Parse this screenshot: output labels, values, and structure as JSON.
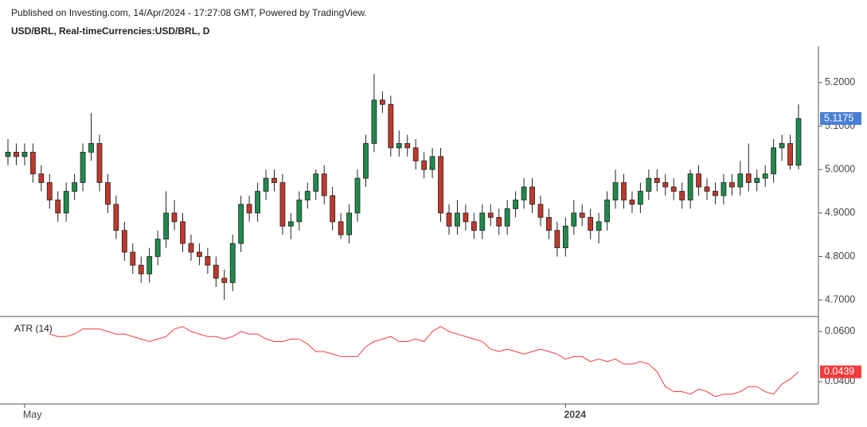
{
  "chart_data": {
    "type": "candlestick",
    "note": "Published on Investing.com, 14/Apr/2024 - 17:27:08 GMT, Powered by TradingView.",
    "title": "USD/BRL, Real-timeCurrencies:USD/BRL, D",
    "categories": [
      null,
      null,
      "May",
      null,
      null,
      null,
      null,
      null,
      null,
      null,
      null,
      null,
      null,
      null,
      null,
      null,
      null,
      null,
      null,
      null,
      null,
      null,
      null,
      null,
      null,
      null,
      null,
      null,
      null,
      null,
      null,
      null,
      null,
      null,
      null,
      null,
      null,
      null,
      null,
      null,
      null,
      null,
      null,
      null,
      null,
      null,
      null,
      null,
      null,
      null,
      null,
      null,
      null,
      null,
      null,
      null,
      null,
      null,
      null,
      null,
      null,
      null,
      null,
      null,
      null,
      null,
      null,
      "2024",
      null,
      null,
      null,
      null,
      null,
      null,
      null,
      null,
      null,
      null,
      null,
      null,
      null,
      null,
      null,
      null,
      null,
      null,
      null,
      null,
      null,
      null,
      null,
      null,
      null,
      null,
      null,
      null
    ],
    "candles": [
      [
        5.03,
        5.07,
        5.01,
        5.04
      ],
      [
        5.04,
        5.06,
        5.01,
        5.03
      ],
      [
        5.03,
        5.06,
        5.01,
        5.04
      ],
      [
        5.04,
        5.06,
        4.97,
        4.99
      ],
      [
        4.99,
        5.01,
        4.95,
        4.97
      ],
      [
        4.97,
        4.99,
        4.91,
        4.93
      ],
      [
        4.93,
        4.95,
        4.88,
        4.9
      ],
      [
        4.9,
        4.97,
        4.88,
        4.95
      ],
      [
        4.95,
        4.99,
        4.93,
        4.97
      ],
      [
        4.97,
        5.06,
        4.95,
        5.04
      ],
      [
        5.04,
        5.13,
        5.02,
        5.06
      ],
      [
        5.06,
        5.08,
        4.95,
        4.97
      ],
      [
        4.97,
        4.99,
        4.9,
        4.92
      ],
      [
        4.92,
        4.94,
        4.84,
        4.86
      ],
      [
        4.86,
        4.88,
        4.79,
        4.81
      ],
      [
        4.81,
        4.83,
        4.76,
        4.78
      ],
      [
        4.78,
        4.8,
        4.74,
        4.76
      ],
      [
        4.76,
        4.82,
        4.74,
        4.8
      ],
      [
        4.8,
        4.86,
        4.78,
        4.84
      ],
      [
        4.84,
        4.95,
        4.82,
        4.9
      ],
      [
        4.9,
        4.93,
        4.86,
        4.88
      ],
      [
        4.88,
        4.9,
        4.81,
        4.83
      ],
      [
        4.83,
        4.85,
        4.79,
        4.81
      ],
      [
        4.81,
        4.83,
        4.78,
        4.8
      ],
      [
        4.8,
        4.82,
        4.76,
        4.78
      ],
      [
        4.78,
        4.8,
        4.73,
        4.75
      ],
      [
        4.75,
        4.77,
        4.7,
        4.74
      ],
      [
        4.74,
        4.85,
        4.72,
        4.83
      ],
      [
        4.83,
        4.94,
        4.81,
        4.92
      ],
      [
        4.92,
        4.94,
        4.88,
        4.9
      ],
      [
        4.9,
        4.97,
        4.88,
        4.95
      ],
      [
        4.95,
        5.0,
        4.93,
        4.98
      ],
      [
        4.98,
        5.0,
        4.95,
        4.97
      ],
      [
        4.97,
        4.99,
        4.85,
        4.87
      ],
      [
        4.87,
        4.9,
        4.84,
        4.88
      ],
      [
        4.88,
        4.95,
        4.86,
        4.93
      ],
      [
        4.93,
        4.97,
        4.91,
        4.95
      ],
      [
        4.95,
        5.0,
        4.93,
        4.99
      ],
      [
        4.99,
        5.01,
        4.92,
        4.94
      ],
      [
        4.94,
        4.96,
        4.86,
        4.88
      ],
      [
        4.88,
        4.9,
        4.84,
        4.85
      ],
      [
        4.85,
        4.92,
        4.83,
        4.9
      ],
      [
        4.9,
        5.0,
        4.88,
        4.98
      ],
      [
        4.98,
        5.08,
        4.96,
        5.06
      ],
      [
        5.06,
        5.22,
        5.04,
        5.16
      ],
      [
        5.16,
        5.18,
        5.13,
        5.15
      ],
      [
        5.15,
        5.17,
        5.03,
        5.05
      ],
      [
        5.05,
        5.09,
        5.03,
        5.06
      ],
      [
        5.06,
        5.08,
        5.03,
        5.05
      ],
      [
        5.05,
        5.07,
        5.0,
        5.02
      ],
      [
        5.02,
        5.04,
        4.98,
        5.0
      ],
      [
        5.0,
        5.05,
        4.98,
        5.03
      ],
      [
        5.03,
        5.05,
        4.88,
        4.9
      ],
      [
        4.9,
        4.92,
        4.85,
        4.87
      ],
      [
        4.87,
        4.93,
        4.85,
        4.9
      ],
      [
        4.9,
        4.92,
        4.86,
        4.88
      ],
      [
        4.88,
        4.9,
        4.84,
        4.86
      ],
      [
        4.86,
        4.92,
        4.84,
        4.9
      ],
      [
        4.9,
        4.92,
        4.87,
        4.89
      ],
      [
        4.89,
        4.91,
        4.85,
        4.87
      ],
      [
        4.87,
        4.93,
        4.85,
        4.91
      ],
      [
        4.91,
        4.95,
        4.89,
        4.93
      ],
      [
        4.93,
        4.98,
        4.91,
        4.96
      ],
      [
        4.96,
        4.98,
        4.9,
        4.92
      ],
      [
        4.92,
        4.94,
        4.87,
        4.89
      ],
      [
        4.89,
        4.91,
        4.84,
        4.86
      ],
      [
        4.86,
        4.88,
        4.8,
        4.82
      ],
      [
        4.82,
        4.89,
        4.8,
        4.87
      ],
      [
        4.87,
        4.93,
        4.85,
        4.9
      ],
      [
        4.9,
        4.92,
        4.87,
        4.89
      ],
      [
        4.89,
        4.91,
        4.84,
        4.86
      ],
      [
        4.86,
        4.9,
        4.83,
        4.88
      ],
      [
        4.88,
        4.95,
        4.86,
        4.93
      ],
      [
        4.93,
        5.0,
        4.91,
        4.97
      ],
      [
        4.97,
        4.99,
        4.91,
        4.93
      ],
      [
        4.93,
        4.95,
        4.9,
        4.92
      ],
      [
        4.92,
        4.97,
        4.9,
        4.95
      ],
      [
        4.95,
        5.0,
        4.93,
        4.98
      ],
      [
        4.98,
        5.0,
        4.95,
        4.97
      ],
      [
        4.97,
        4.99,
        4.94,
        4.96
      ],
      [
        4.96,
        4.98,
        4.93,
        4.95
      ],
      [
        4.95,
        4.97,
        4.91,
        4.93
      ],
      [
        4.93,
        5.0,
        4.91,
        4.99
      ],
      [
        4.99,
        5.01,
        4.94,
        4.96
      ],
      [
        4.96,
        4.98,
        4.93,
        4.95
      ],
      [
        4.95,
        4.97,
        4.92,
        4.94
      ],
      [
        4.94,
        4.99,
        4.92,
        4.97
      ],
      [
        4.97,
        4.99,
        4.94,
        4.96
      ],
      [
        4.96,
        5.02,
        4.94,
        4.99
      ],
      [
        4.99,
        5.06,
        4.95,
        4.97
      ],
      [
        4.97,
        5.0,
        4.95,
        4.98
      ],
      [
        4.98,
        5.01,
        4.96,
        4.99
      ],
      [
        4.99,
        5.07,
        4.97,
        5.05
      ],
      [
        5.05,
        5.08,
        5.02,
        5.06
      ],
      [
        5.06,
        5.08,
        5.0,
        5.01
      ],
      [
        5.01,
        5.15,
        5.0,
        5.1175
      ]
    ],
    "up_color": "#1f8a4c",
    "down_color": "#c0392b",
    "ylim": [
      4.662,
      5.284
    ],
    "yticks": [
      {
        "value": 4.7,
        "label": "4.7000"
      },
      {
        "value": 4.8,
        "label": "4.8000"
      },
      {
        "value": 4.9,
        "label": "4.9000"
      },
      {
        "value": 5.0,
        "label": "5.0000"
      },
      {
        "value": 5.1,
        "label": "5.1000"
      },
      {
        "value": 5.2,
        "label": "5.2000"
      }
    ],
    "last_price": 5.1175,
    "last_price_color": "#4a7fd6",
    "indicator": {
      "name": "ATR (14)",
      "color": "#f23c3c",
      "values": [
        null,
        null,
        null,
        null,
        null,
        0.059,
        0.058,
        0.058,
        0.059,
        0.061,
        0.061,
        0.061,
        0.06,
        0.059,
        0.059,
        0.058,
        0.057,
        0.056,
        0.057,
        0.058,
        0.061,
        0.062,
        0.06,
        0.059,
        0.058,
        0.058,
        0.057,
        0.058,
        0.06,
        0.059,
        0.059,
        0.057,
        0.056,
        0.056,
        0.057,
        0.057,
        0.055,
        0.052,
        0.052,
        0.051,
        0.05,
        0.05,
        0.05,
        0.054,
        0.056,
        0.057,
        0.058,
        0.056,
        0.056,
        0.057,
        0.056,
        0.06,
        0.062,
        0.06,
        0.059,
        0.058,
        0.057,
        0.056,
        0.053,
        0.052,
        0.053,
        0.052,
        0.051,
        0.052,
        0.053,
        0.052,
        0.051,
        0.049,
        0.05,
        0.05,
        0.048,
        0.049,
        0.048,
        0.049,
        0.047,
        0.047,
        0.048,
        0.047,
        0.044,
        0.038,
        0.036,
        0.036,
        0.035,
        0.037,
        0.036,
        0.034,
        0.035,
        0.035,
        0.036,
        0.038,
        0.038,
        0.036,
        0.035,
        0.039,
        0.041,
        0.0439
      ],
      "ylim": [
        0.0311,
        0.066
      ],
      "yticks": [
        {
          "value": 0.04,
          "label": "0.0400"
        },
        {
          "value": 0.06,
          "label": "0.0600"
        }
      ],
      "last_value": 0.0439
    }
  }
}
